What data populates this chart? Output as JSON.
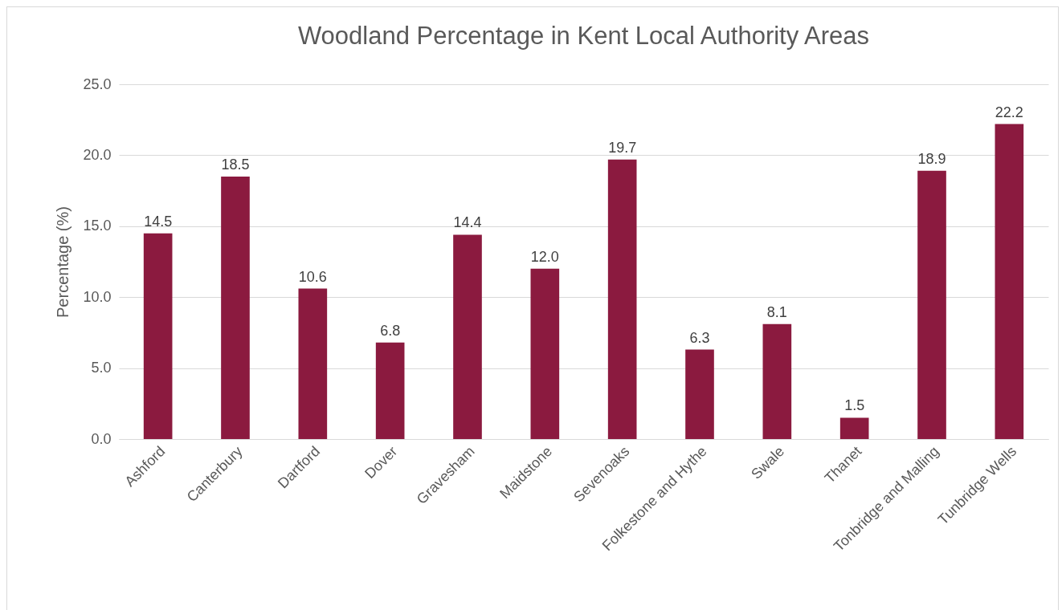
{
  "chart_data": {
    "type": "bar",
    "title": "Woodland Percentage in Kent Local Authority Areas",
    "ylabel": "Percentage (%)",
    "categories": [
      "Ashford",
      "Canterbury",
      "Dartford",
      "Dover",
      "Gravesham",
      "Maidstone",
      "Sevenoaks",
      "Folkestone and Hythe",
      "Swale",
      "Thanet",
      "Tonbridge and Malling",
      "Tunbridge Wells"
    ],
    "values": [
      14.5,
      18.5,
      10.6,
      6.8,
      14.4,
      12.0,
      19.7,
      6.3,
      8.1,
      1.5,
      18.9,
      22.2
    ],
    "value_labels": [
      "14.5",
      "18.5",
      "10.6",
      "6.8",
      "14.4",
      "12.0",
      "19.7",
      "6.3",
      "8.1",
      "1.5",
      "18.9",
      "22.2"
    ],
    "color": "#8b1a3f",
    "ylim": [
      0,
      25
    ],
    "yticks": [
      {
        "value": 0,
        "label": "0.0"
      },
      {
        "value": 5,
        "label": "5.0"
      },
      {
        "value": 10,
        "label": "10.0"
      },
      {
        "value": 15,
        "label": "15.0"
      },
      {
        "value": 20,
        "label": "20.0"
      },
      {
        "value": 25,
        "label": "25.0"
      }
    ],
    "grid": "y"
  }
}
